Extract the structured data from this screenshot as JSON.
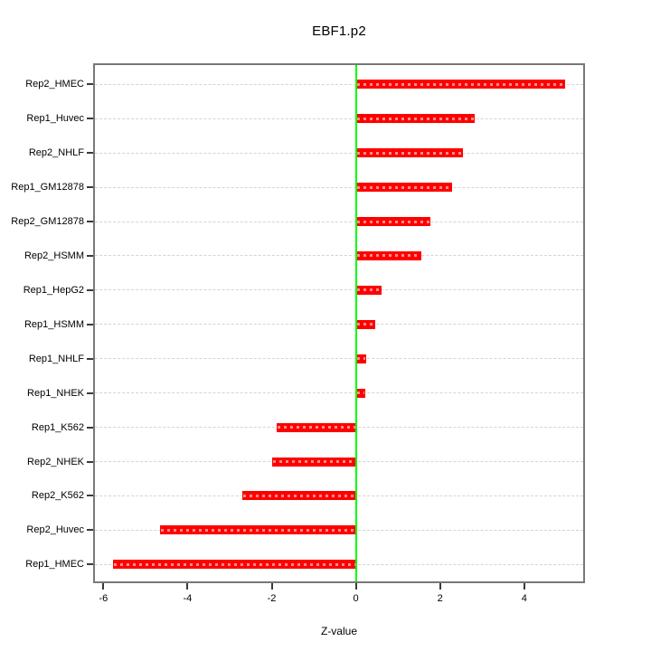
{
  "title": "EBF1.p2",
  "xlabel": "Z-value",
  "chart_data": {
    "type": "bar",
    "orientation": "horizontal",
    "title": "EBF1.p2",
    "xlabel": "Z-value",
    "ylabel": "",
    "xlim": [
      -6.2,
      5.4
    ],
    "xticks": [
      -6,
      -4,
      -2,
      0,
      2,
      4
    ],
    "grid": "horizontal dashed line per category",
    "legend": "none",
    "zero_reference_line": 0,
    "rows": [
      {
        "label": "Rep2_HMEC",
        "value": 4.98
      },
      {
        "label": "Rep1_Huvec",
        "value": 2.82
      },
      {
        "label": "Rep2_NHLF",
        "value": 2.54
      },
      {
        "label": "Rep1_GM12878",
        "value": 2.29
      },
      {
        "label": "Rep2_GM12878",
        "value": 1.78
      },
      {
        "label": "Rep2_HSMM",
        "value": 1.56
      },
      {
        "label": "Rep1_HepG2",
        "value": 0.62
      },
      {
        "label": "Rep1_HSMM",
        "value": 0.46
      },
      {
        "label": "Rep1_NHLF",
        "value": 0.24
      },
      {
        "label": "Rep1_NHEK",
        "value": 0.22
      },
      {
        "label": "Rep1_K562",
        "value": -1.89
      },
      {
        "label": "Rep2_NHEK",
        "value": -2.0
      },
      {
        "label": "Rep2_K562",
        "value": -2.69
      },
      {
        "label": "Rep2_Huvec",
        "value": -4.65
      },
      {
        "label": "Rep1_HMEC",
        "value": -5.76
      }
    ],
    "colors": {
      "bar": "#fe0000",
      "bar_inner_dash": "#ffcccc",
      "zero_line": "#00ff00",
      "grid_line": "#d4d4d4",
      "box_border": "#787878",
      "tick": "#3a3a3a",
      "text": "#000000",
      "background": "#ffffff"
    }
  }
}
